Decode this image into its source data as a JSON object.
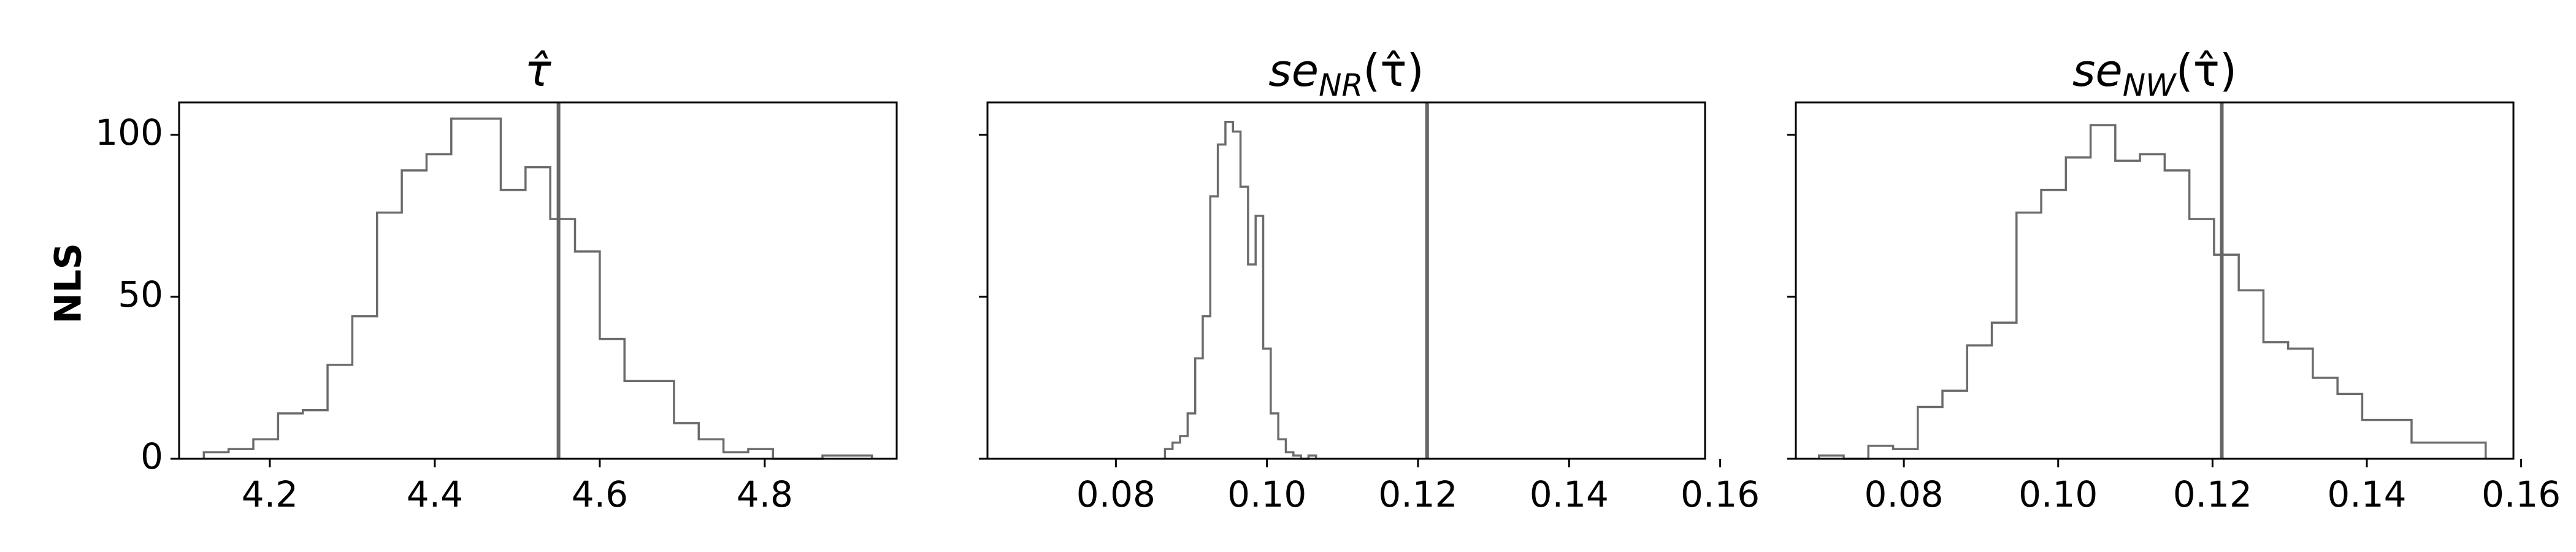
{
  "row_label": "NLS",
  "chart_data": [
    {
      "type": "histogram",
      "title": "τ̂",
      "title_parts": {
        "base": "τ̂",
        "sub": "",
        "arg": ""
      },
      "xlim": [
        4.09,
        4.96
      ],
      "ylim": [
        0,
        110
      ],
      "xticks": [
        4.2,
        4.4,
        4.6,
        4.8
      ],
      "xtick_labels": [
        "4.2",
        "4.4",
        "4.6",
        "4.8"
      ],
      "yticks": [
        0,
        50,
        100
      ],
      "ytick_labels": [
        "0",
        "50",
        "100"
      ],
      "bin_edges": [
        4.12,
        4.15,
        4.18,
        4.21,
        4.24,
        4.27,
        4.3,
        4.33,
        4.36,
        4.39,
        4.42,
        4.45,
        4.48,
        4.51,
        4.54,
        4.57,
        4.6,
        4.63,
        4.66,
        4.69,
        4.72,
        4.75,
        4.78,
        4.81,
        4.84,
        4.87,
        4.9,
        4.93
      ],
      "counts": [
        2,
        3,
        6,
        14,
        15,
        29,
        44,
        76,
        89,
        94,
        105,
        105,
        83,
        90,
        74,
        64,
        37,
        24,
        24,
        11,
        6,
        2,
        3,
        0,
        0,
        1,
        1
      ],
      "reference_line": 4.55,
      "grid": false
    },
    {
      "type": "histogram",
      "title": "se_NR(τ̂)",
      "title_parts": {
        "base": "se",
        "sub": "NR",
        "arg": "(τ̂)"
      },
      "xlim": [
        0.063,
        0.158
      ],
      "ylim": [
        0,
        110
      ],
      "xticks": [
        0.08,
        0.1,
        0.12,
        0.14,
        0.16
      ],
      "xtick_labels": [
        "0.08",
        "0.10",
        "0.12",
        "0.14",
        "0.16"
      ],
      "yticks": [
        0,
        50,
        100
      ],
      "ytick_labels": [
        "",
        "",
        ""
      ],
      "bin_edges": [
        0.0865,
        0.0875,
        0.0885,
        0.0895,
        0.0905,
        0.0915,
        0.0925,
        0.0935,
        0.0945,
        0.0955,
        0.0965,
        0.0975,
        0.0985,
        0.0995,
        0.1005,
        0.1015,
        0.1025,
        0.1035,
        0.1045,
        0.1055,
        0.1065
      ],
      "counts": [
        3,
        5,
        7,
        14,
        31,
        44,
        81,
        97,
        104,
        101,
        84,
        60,
        75,
        34,
        14,
        6,
        2,
        1,
        0,
        1
      ],
      "reference_line": 0.1212,
      "grid": false
    },
    {
      "type": "histogram",
      "title": "se_NW(τ̂)",
      "title_parts": {
        "base": "se",
        "sub": "NW",
        "arg": "(τ̂)"
      },
      "xlim": [
        0.066,
        0.159
      ],
      "ylim": [
        0,
        110
      ],
      "xticks": [
        0.08,
        0.1,
        0.12,
        0.14,
        0.16
      ],
      "xtick_labels": [
        "0.08",
        "0.10",
        "0.12",
        "0.14",
        "0.16"
      ],
      "yticks": [
        0,
        50,
        100
      ],
      "ytick_labels": [
        "",
        "",
        ""
      ],
      "bin_edges": [
        0.069,
        0.0722,
        0.0754,
        0.0786,
        0.0818,
        0.085,
        0.0882,
        0.0914,
        0.0946,
        0.0978,
        0.101,
        0.1042,
        0.1074,
        0.1106,
        0.1138,
        0.117,
        0.1202,
        0.1234,
        0.1266,
        0.1298,
        0.133,
        0.1362,
        0.1394,
        0.1426,
        0.1458,
        0.149,
        0.1522,
        0.1554
      ],
      "counts": [
        1,
        0,
        4,
        3,
        16,
        21,
        35,
        42,
        76,
        83,
        93,
        103,
        92,
        94,
        89,
        74,
        63,
        52,
        36,
        34,
        25,
        20,
        12,
        12,
        5,
        5,
        5
      ],
      "reference_line": 0.1212,
      "grid": false
    }
  ]
}
